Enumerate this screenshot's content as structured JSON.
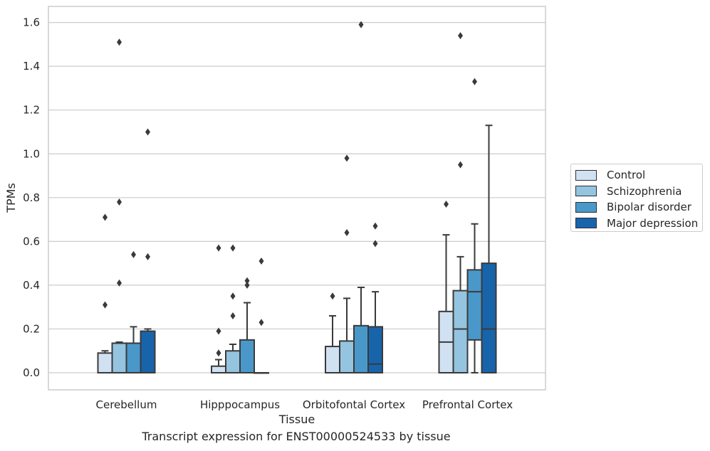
{
  "chart_data": {
    "type": "box",
    "xlabel": "Tissue",
    "ylabel": "TPMs",
    "ylim": [
      -0.08,
      1.67
    ],
    "yticks": [
      0.0,
      0.2,
      0.4,
      0.6,
      0.8,
      1.0,
      1.2,
      1.4,
      1.6
    ],
    "ytick_labels": [
      "0.0",
      "0.2",
      "0.4",
      "0.6",
      "0.8",
      "1.0",
      "1.2",
      "1.4",
      "1.6"
    ],
    "grid": "horizontal",
    "legend_position": "right",
    "categories": [
      "Cerebellum",
      "Hipppocampus",
      "Orbitofontal Cortex",
      "Prefrontal Cortex"
    ],
    "series": [
      {
        "name": "Control",
        "color": "#d0e1f2",
        "boxes": [
          {
            "whisker_low": 0,
            "q1": 0,
            "median": 0,
            "q3": 0.09,
            "whisker_high": 0.1,
            "outliers": [
              0.31,
              0.71
            ]
          },
          {
            "whisker_low": 0,
            "q1": 0,
            "median": 0,
            "q3": 0.03,
            "whisker_high": 0.06,
            "outliers": [
              0.09,
              0.19,
              0.57
            ]
          },
          {
            "whisker_low": 0,
            "q1": 0,
            "median": 0,
            "q3": 0.12,
            "whisker_high": 0.26,
            "outliers": [
              0.35
            ]
          },
          {
            "whisker_low": 0,
            "q1": 0,
            "median": 0.14,
            "q3": 0.28,
            "whisker_high": 0.63,
            "outliers": [
              0.77
            ]
          }
        ]
      },
      {
        "name": "Schizophrenia",
        "color": "#94c4df",
        "boxes": [
          {
            "whisker_low": 0,
            "q1": 0,
            "median": 0,
            "q3": 0.135,
            "whisker_high": 0.14,
            "outliers": [
              0.41,
              0.78,
              1.51
            ]
          },
          {
            "whisker_low": 0,
            "q1": 0,
            "median": 0,
            "q3": 0.1,
            "whisker_high": 0.13,
            "outliers": [
              0.26,
              0.35,
              0.57
            ]
          },
          {
            "whisker_low": 0,
            "q1": 0,
            "median": 0,
            "q3": 0.145,
            "whisker_high": 0.34,
            "outliers": [
              0.64,
              0.98
            ]
          },
          {
            "whisker_low": 0,
            "q1": 0,
            "median": 0.2,
            "q3": 0.375,
            "whisker_high": 0.53,
            "outliers": [
              0.95,
              1.54
            ]
          }
        ]
      },
      {
        "name": "Bipolar disorder",
        "color": "#4a98c9",
        "boxes": [
          {
            "whisker_low": 0,
            "q1": 0,
            "median": 0,
            "q3": 0.135,
            "whisker_high": 0.21,
            "outliers": [
              0.54
            ]
          },
          {
            "whisker_low": 0,
            "q1": 0,
            "median": 0,
            "q3": 0.15,
            "whisker_high": 0.32,
            "outliers": [
              0.4,
              0.42
            ]
          },
          {
            "whisker_low": 0,
            "q1": 0,
            "median": 0,
            "q3": 0.215,
            "whisker_high": 0.39,
            "outliers": [
              1.59
            ]
          },
          {
            "whisker_low": 0,
            "q1": 0.15,
            "median": 0.37,
            "q3": 0.47,
            "whisker_high": 0.68,
            "outliers": [
              1.33
            ]
          }
        ]
      },
      {
        "name": "Major depression",
        "color": "#1764ab",
        "boxes": [
          {
            "whisker_low": 0,
            "q1": 0,
            "median": 0,
            "q3": 0.19,
            "whisker_high": 0.2,
            "outliers": [
              0.53,
              1.1
            ]
          },
          {
            "whisker_low": 0,
            "q1": 0,
            "median": 0,
            "q3": 0,
            "whisker_high": 0,
            "outliers": [
              0.23,
              0.51
            ]
          },
          {
            "whisker_low": 0,
            "q1": 0,
            "median": 0.04,
            "q3": 0.21,
            "whisker_high": 0.37,
            "outliers": [
              0.59,
              0.67
            ]
          },
          {
            "whisker_low": 0,
            "q1": 0,
            "median": 0.2,
            "q3": 0.5,
            "whisker_high": 1.13,
            "outliers": []
          }
        ]
      }
    ],
    "caption": "Transcript expression for ENST00000524533 by tissue"
  }
}
